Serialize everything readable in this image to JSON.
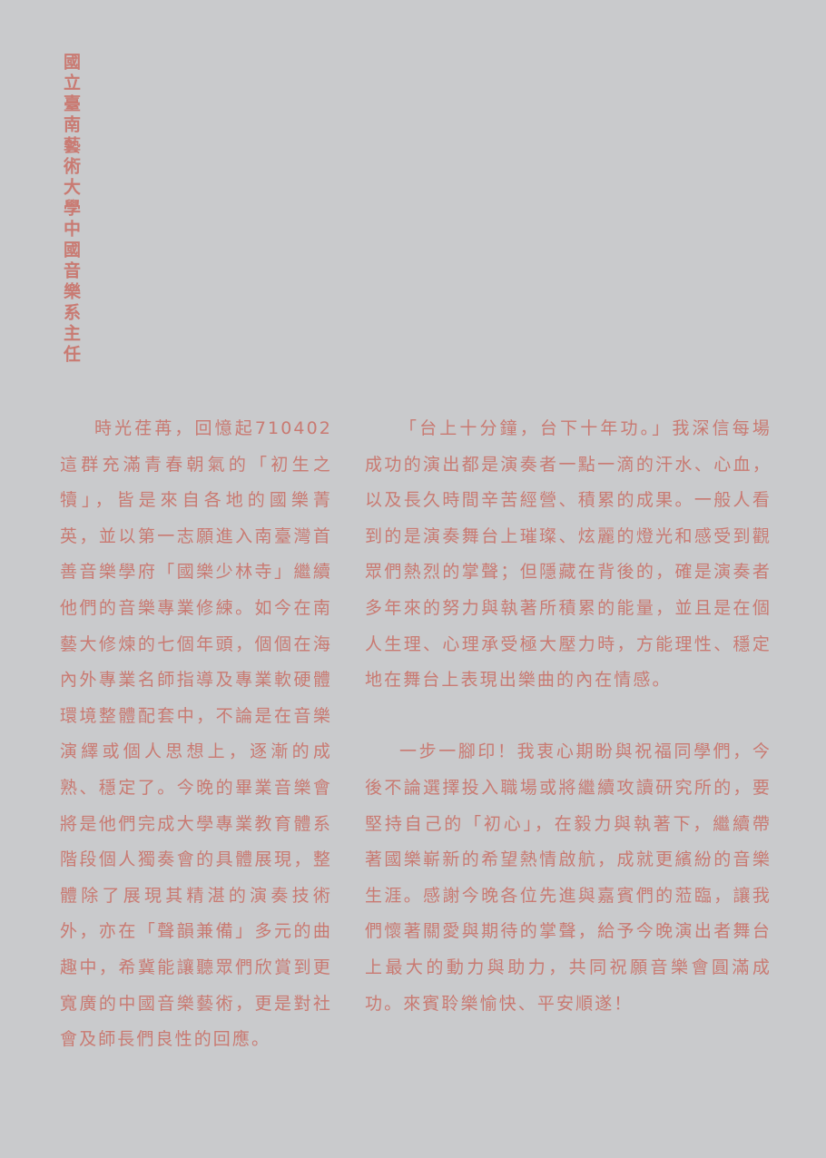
{
  "sidebar": {
    "title": "國立臺南藝術大學中國音樂系主任"
  },
  "left_column": {
    "paragraphs": [
      "時光荏苒，回憶起710402這群充滿青春朝氣的「初生之犢」，皆是來自各地的國樂菁英，並以第一志願進入南臺灣首善音樂學府「國樂少林寺」繼續他們的音樂專業修練。如今在南藝大修煉的七個年頭，個個在海內外專業名師指導及專業軟硬體環境整體配套中，不論是在音樂演繹或個人思想上，逐漸的成熟、穩定了。今晚的畢業音樂會將是他們完成大學專業教育體系階段個人獨奏會的具體展現，整體除了展現其精湛的演奏技術外，亦在「聲韻兼備」多元的曲趣中，希冀能讓聽眾們欣賞到更寬廣的中國音樂藝術，更是對社會及師長們良性的回應。"
    ]
  },
  "right_column": {
    "paragraphs": [
      "「台上十分鐘，台下十年功。」我深信每場成功的演出都是演奏者一點一滴的汗水、心血，以及長久時間辛苦經營、積累的成果。一般人看到的是演奏舞台上璀璨、炫麗的燈光和感受到觀眾們熱烈的掌聲；但隱藏在背後的，確是演奏者多年來的努力與執著所積累的能量，並且是在個人生理、心理承受極大壓力時，方能理性、穩定地在舞台上表現出樂曲的內在情感。",
      "一步一腳印！我衷心期盼與祝福同學們，今後不論選擇投入職場或將繼續攻讀研究所的，要堅持自己的「初心」，在毅力與執著下，繼續帶著國樂嶄新的希望熱情啟航，成就更繽紛的音樂生涯。感謝今晚各位先進與嘉賓們的蒞臨，讓我們懷著關愛與期待的掌聲，給予今晚演出者舞台上最大的動力與助力，共同祝願音樂會圓滿成功。來賓聆樂愉快、平安順遂！"
    ]
  },
  "colors": {
    "background": "#c9cacc",
    "text": "#c97a72"
  }
}
